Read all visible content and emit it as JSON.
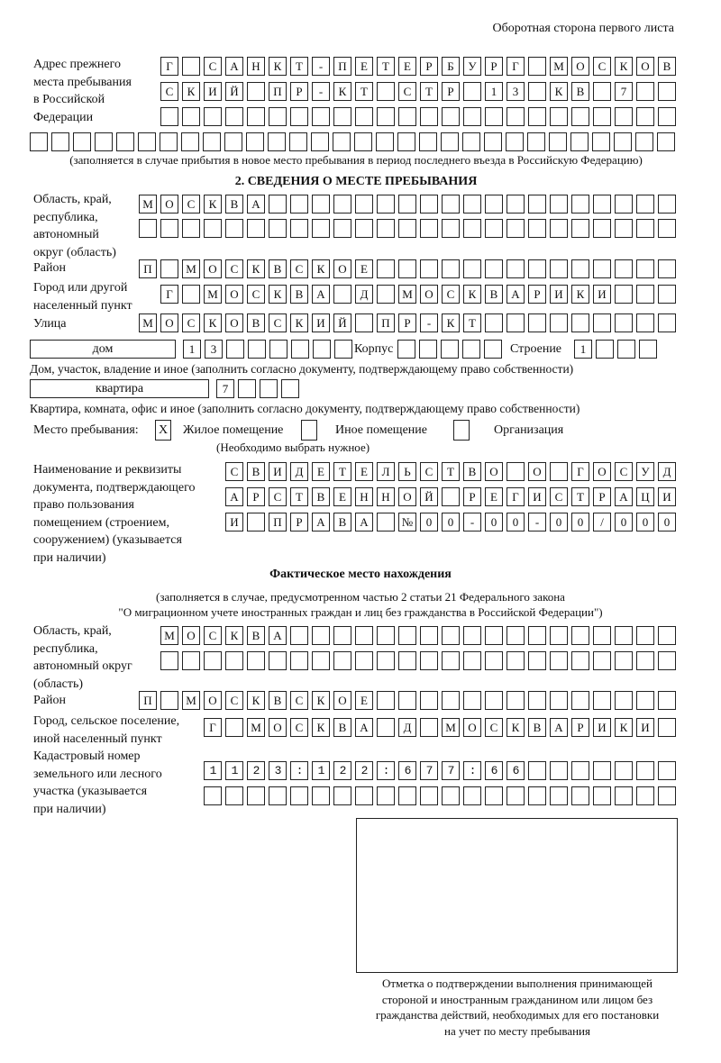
{
  "header": "Оборотная сторона первого листа",
  "previous_address": {
    "label": "Адрес прежнего\nместа пребывания\nв Российской\nФедерации",
    "rows": [
      "Г САНКТ-ПЕТЕРБУРГ МОСКОВ",
      "СКИЙ ПР-КТ СТР 13 КВ 7  ",
      "                        ",
      "                              "
    ],
    "note": "(заполняется в случае прибытия в новое место пребывания в период последнего въезда в Российскую Федерацию)"
  },
  "section2": {
    "title": "2. СВЕДЕНИЯ О МЕСТЕ ПРЕБЫВАНИЯ",
    "region_label": "Область, край,\nреспублика,\nавтономный\nокруг (область)",
    "region_rows": [
      "МОСКВА                   ",
      "                         "
    ],
    "district_label": "Район",
    "district_row": "П МОСКВСКОЕ              ",
    "city_label": "Город или другой\nнаселенный пункт",
    "city_row": "Г МОСКВА Д МОСКВАРИКИ   ",
    "street_label": "Улица",
    "street_row": "МОСКОВСКИЙ ПР-КТ         ",
    "house_type": "дом",
    "house_number": "13      ",
    "korpus_label": "Корпус",
    "korpus_value": "     ",
    "building_label": "Строение",
    "building_value": "1   ",
    "house_note": "Дом, участок, владение и иное (заполнить согласно документу, подтверждающему право собственности)",
    "apt_type": "квартира",
    "apt_number": "7   ",
    "apt_note": "Квартира, комната, офис и иное (заполнить согласно документу, подтверждающему право собственности)",
    "place_label": "Место пребывания:",
    "place_options": [
      {
        "label": "Жилое помещение",
        "mark": "X"
      },
      {
        "label": "Иное помещение",
        "mark": ""
      },
      {
        "label": "Организация",
        "mark": ""
      }
    ],
    "place_note": "(Необходимо выбрать нужное)",
    "doc_label": "Наименование и реквизиты\nдокумента, подтверждающего\nправо пользования\nпомещением (строением,\nсооружением) (указывается\nпри наличии)",
    "doc_rows": [
      "СВИДЕТЕЛЬСТВО О ГОСУД",
      "АРСТВЕННОЙ РЕГИСТРАЦИ",
      "И ПРАВА №00-00-00/000"
    ]
  },
  "actual": {
    "title": "Фактическое место нахождения",
    "note1": "(заполняется в случае, предусмотренном частью 2 статьи 21 Федерального закона",
    "note2": "\"О миграционном учете иностранных граждан и лиц без гражданства в Российской Федерации\")",
    "region_label": "Область, край,\nреспублика,\nавтономный округ\n(область)",
    "region_rows": [
      "МОСКВА                  ",
      "                        "
    ],
    "district_label": "Район",
    "district_row": "П МОСКВСКОЕ              ",
    "city_label": "Город, сельское поселение,\nиной населенный пункт",
    "city_row": "Г МОСКВА Д МОСКВАРИКИ ",
    "cadastral_label": "Кадастровый номер\nземельного или лесного\nучастка (указывается\nпри наличии)",
    "cadastral_rows": [
      "1123:122:677:66       ",
      "                      "
    ]
  },
  "stamp_caption": "Отметка о подтверждении выполнения принимающей\nстороной и иностранным гражданином или лицом без\nгражданства действий, необходимых для его постановки\nна учет по месту пребывания"
}
